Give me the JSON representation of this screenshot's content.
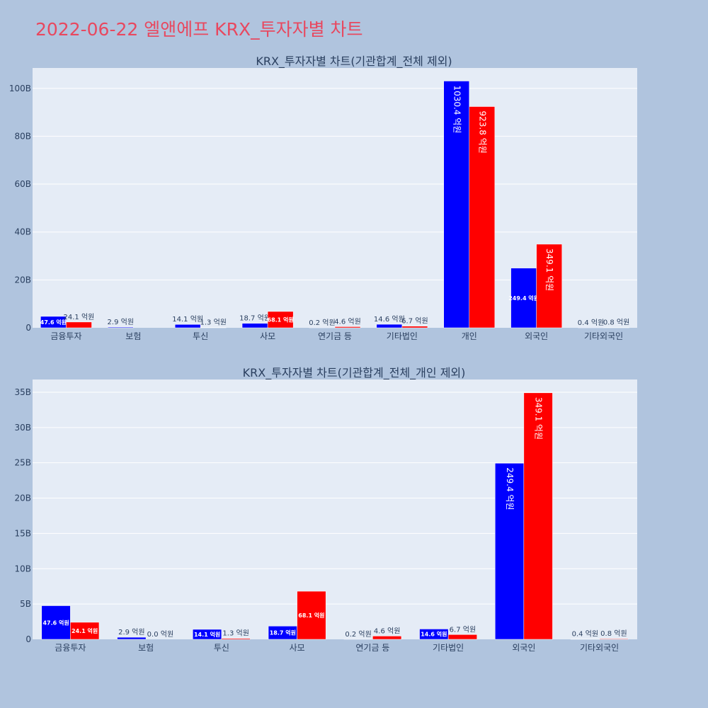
{
  "page": {
    "title": "2022-06-22 엘앤에프 KRX_투자자별 차트"
  },
  "colors": {
    "background": "#b0c4de",
    "plot_background": "#e5ecf6",
    "title": "#e8485f",
    "series_buy": "#0000ff",
    "series_sell": "#ff0000",
    "text": "#2a3f5f"
  },
  "chart_data": [
    {
      "type": "bar",
      "title": "KRX_투자자별 차트(기관합계_전체 제외)",
      "categories": [
        "금융투자",
        "보험",
        "투신",
        "사모",
        "연기금 등",
        "기타법인",
        "개인",
        "외국인",
        "기타외국인"
      ],
      "series": [
        {
          "color": "#0000ff",
          "values": [
            4760000000,
            290000000,
            1410000000,
            1870000000,
            20000000,
            1460000000,
            103040000000,
            24940000000,
            40000000
          ],
          "labels": [
            "47.6 억원",
            "2.9 억원",
            "14.1 억원",
            "18.7 억원",
            "0.2 억원",
            "14.6 억원",
            "1030.4 억원",
            "249.4 억원",
            "0.4 억원"
          ]
        },
        {
          "color": "#ff0000",
          "values": [
            2410000000,
            0,
            130000000,
            6810000000,
            460000000,
            670000000,
            92380000000,
            34910000000,
            80000000
          ],
          "labels": [
            "24.1 억원",
            "",
            "1.3 억원",
            "68.1 억원",
            "4.6 억원",
            "6.7 억원",
            "923.8 억원",
            "349.1 억원",
            "0.8 억원"
          ]
        }
      ],
      "yticks": [
        0,
        20000000000,
        40000000000,
        60000000000,
        80000000000,
        100000000000
      ],
      "ytick_labels": [
        "0",
        "20B",
        "40B",
        "60B",
        "80B",
        "100B"
      ],
      "ylim": [
        0,
        108500000000
      ],
      "legend": "none",
      "grid": true
    },
    {
      "type": "bar",
      "title": "KRX_투자자별 차트(기관합계_전체_개인 제외)",
      "categories": [
        "금융투자",
        "보험",
        "투신",
        "사모",
        "연기금 등",
        "기타법인",
        "외국인",
        "기타외국인"
      ],
      "series": [
        {
          "color": "#0000ff",
          "values": [
            4760000000,
            290000000,
            1410000000,
            1870000000,
            20000000,
            1460000000,
            24940000000,
            40000000
          ],
          "labels": [
            "47.6 억원",
            "2.9 억원",
            "14.1 억원",
            "18.7 억원",
            "0.2 억원",
            "14.6 억원",
            "249.4 억원",
            "0.4 억원"
          ]
        },
        {
          "color": "#ff0000",
          "values": [
            2410000000,
            0,
            130000000,
            6810000000,
            460000000,
            670000000,
            34910000000,
            80000000
          ],
          "labels": [
            "24.1 억원",
            "0.0 억원",
            "1.3 억원",
            "68.1 억원",
            "4.6 억원",
            "6.7 억원",
            "349.1 억원",
            "0.8 억원"
          ]
        }
      ],
      "yticks": [
        0,
        5000000000,
        10000000000,
        15000000000,
        20000000000,
        25000000000,
        30000000000,
        35000000000
      ],
      "ytick_labels": [
        "0",
        "5B",
        "10B",
        "15B",
        "20B",
        "25B",
        "30B",
        "35B"
      ],
      "ylim": [
        0,
        36800000000
      ],
      "legend": "none",
      "grid": true
    }
  ]
}
